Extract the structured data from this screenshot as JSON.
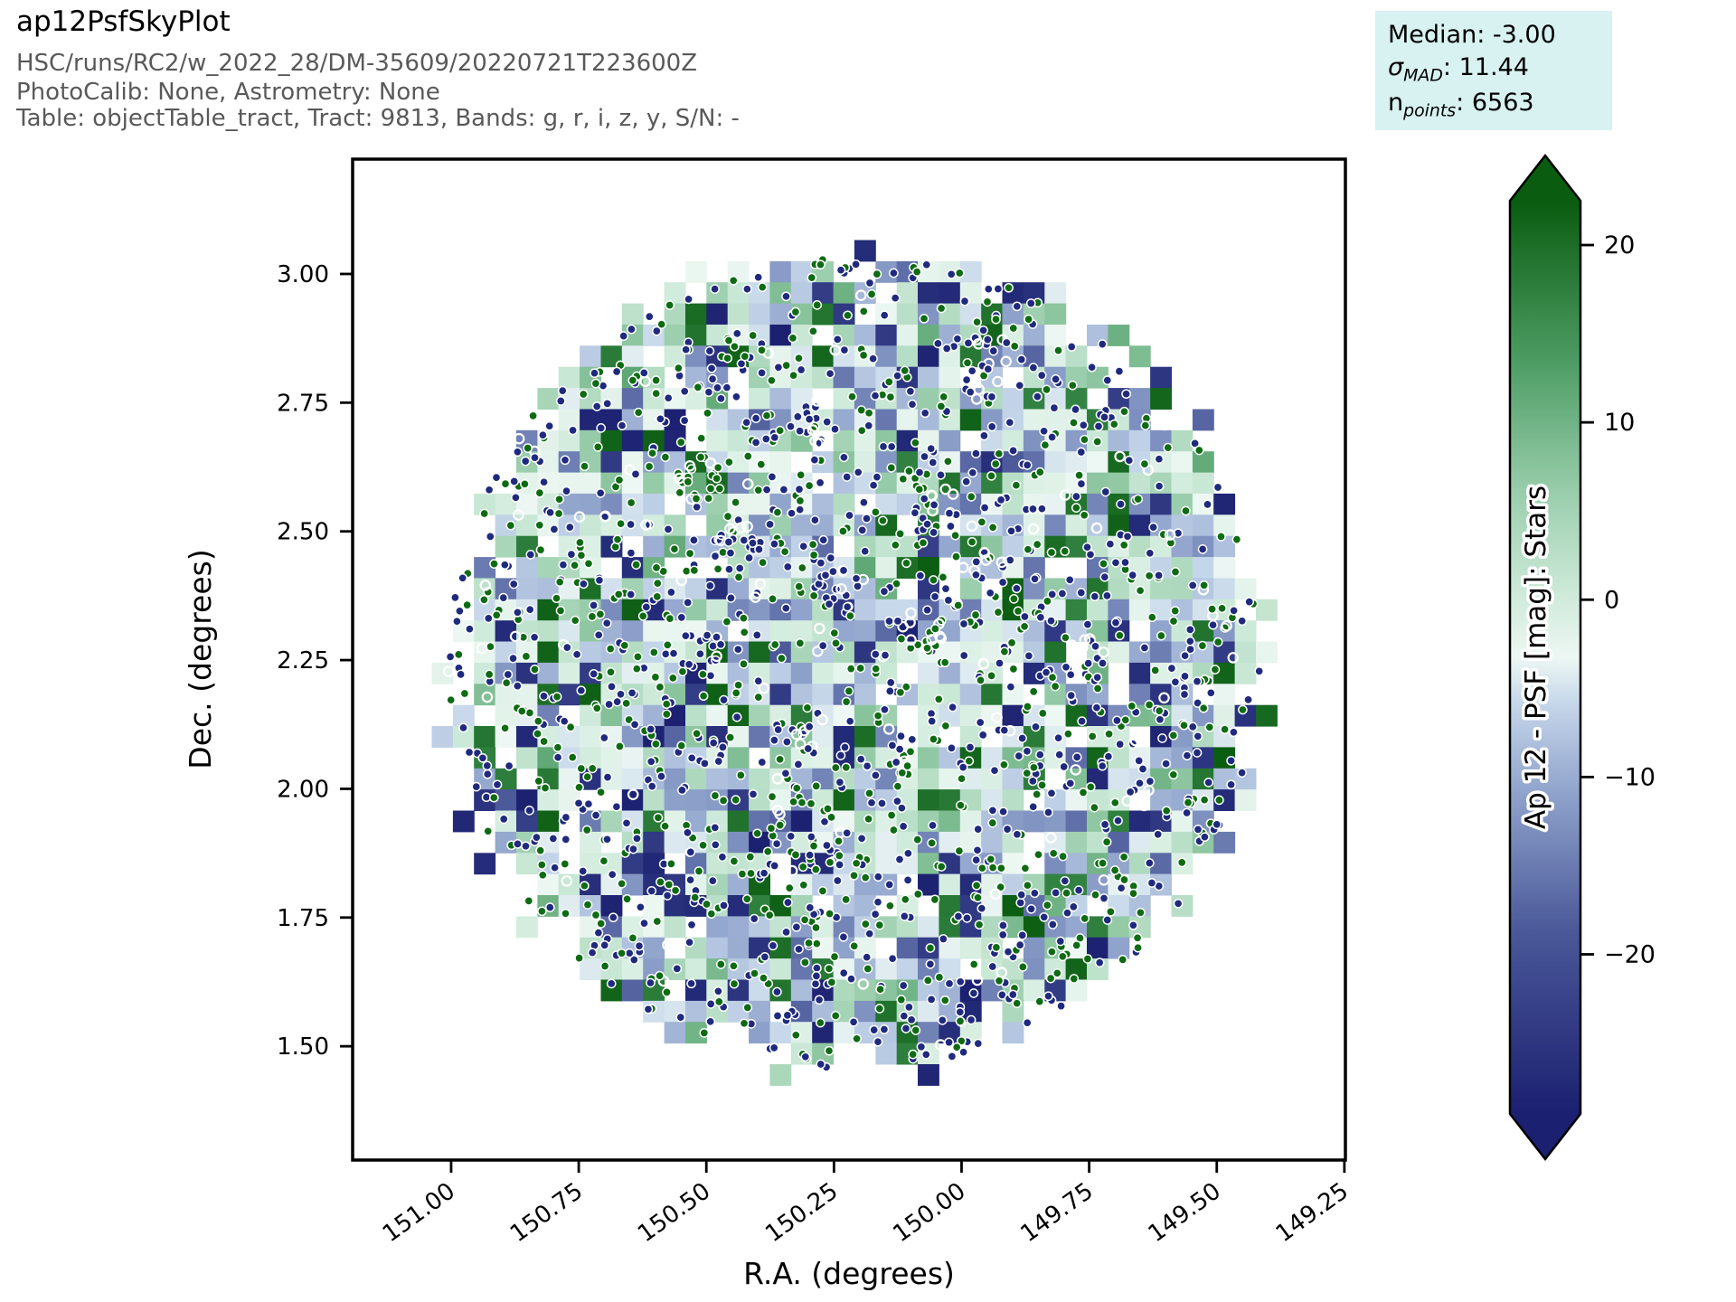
{
  "header": {
    "title": "ap12PsfSkyPlot",
    "run": "HSC/runs/RC2/w_2022_28/DM-35609/20220721T223600Z",
    "calib": "PhotoCalib: None, Astrometry: None",
    "table": "Table: objectTable_tract, Tract: 9813, Bands: g, r, i, z, y, S/N: -"
  },
  "stats_box": {
    "bg_color": "#d8f1f1",
    "median_label": "Median: ",
    "median_value": "-3.00",
    "sigma_symbol": "σ",
    "sigma_sub": "MAD",
    "sigma_sep": ": ",
    "sigma_value": "11.44",
    "n_symbol": "n",
    "n_sub": "points",
    "n_sep": ": ",
    "n_value": "6563"
  },
  "chart_data": {
    "type": "heatmap",
    "overlay": "scatter",
    "title": "ap12PsfSkyPlot",
    "xlabel": "R.A. (degrees)",
    "ylabel": "Dec. (degrees)",
    "x_axis_inverted": true,
    "x_range": [
      151.193,
      149.248
    ],
    "y_range": [
      1.279,
      3.223
    ],
    "x_ticks": {
      "values": [
        151.0,
        150.75,
        150.5,
        150.25,
        150.0,
        149.75,
        149.5,
        149.25
      ],
      "labels": [
        "151.00",
        "150.75",
        "150.50",
        "150.25",
        "150.00",
        "149.75",
        "149.50",
        "149.25"
      ]
    },
    "y_ticks": {
      "values": [
        3.0,
        2.75,
        2.5,
        2.25,
        2.0,
        1.75,
        1.5
      ],
      "labels": [
        "3.00",
        "2.75",
        "2.50",
        "2.25",
        "2.00",
        "1.75",
        "1.50"
      ]
    },
    "colorbar": {
      "label": "Ap 12 - PSF [mag]: Stars",
      "ticks": {
        "values": [
          20,
          10,
          0,
          -10,
          -20
        ],
        "labels": [
          "20",
          "10",
          "0",
          "−10",
          "−20"
        ]
      },
      "range": [
        -29.0,
        22.5
      ],
      "extend": "both"
    },
    "colormap": [
      [
        -1.0,
        "#1b2070"
      ],
      [
        -0.6,
        "#4a5899"
      ],
      [
        -0.3,
        "#8fa2cb"
      ],
      [
        -0.1,
        "#c6d7ea"
      ],
      [
        0.0,
        "#edf7f3"
      ],
      [
        0.12,
        "#d2ecdd"
      ],
      [
        0.35,
        "#9ccfae"
      ],
      [
        0.65,
        "#4c9c63"
      ],
      [
        1.0,
        "#0a5c10"
      ]
    ],
    "stats": {
      "median": -3.0,
      "sigma_mad": 11.44,
      "n_points": 6563
    },
    "field": {
      "center_radec": [
        150.21,
        2.245
      ],
      "radius_deg": 0.82,
      "bin_size_deg": 0.0414,
      "seed": 20220721,
      "n_scatter": 1450,
      "n_clusters": 12,
      "point_color_negative": "#1f2a7e",
      "point_color_positive": "#0e6b13"
    }
  }
}
